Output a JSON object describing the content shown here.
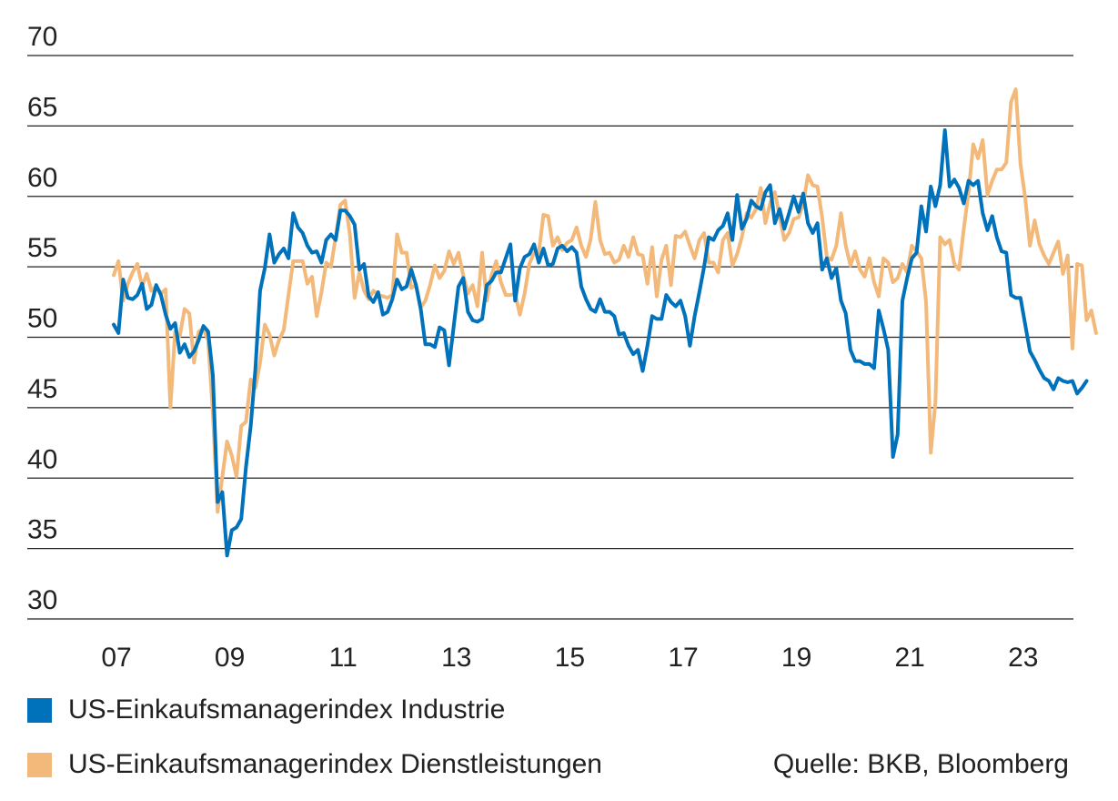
{
  "chart_data": {
    "type": "line",
    "title": "",
    "xlabel": "",
    "ylabel": "",
    "ylim": [
      30,
      70
    ],
    "yticks": [
      30,
      35,
      40,
      45,
      50,
      55,
      60,
      65,
      70
    ],
    "xticks": [
      {
        "label": "07",
        "year": 2007
      },
      {
        "label": "09",
        "year": 2009
      },
      {
        "label": "11",
        "year": 2011
      },
      {
        "label": "13",
        "year": 2013
      },
      {
        "label": "15",
        "year": 2015
      },
      {
        "label": "17",
        "year": 2017
      },
      {
        "label": "19",
        "year": 2019
      },
      {
        "label": "21",
        "year": 2021
      },
      {
        "label": "23",
        "year": 2023
      }
    ],
    "x_start": "2007-01",
    "x_frequency": "monthly",
    "grid": true,
    "legend_position": "bottom-left",
    "series": [
      {
        "name": "US-Einkaufsmanagerindex Industrie",
        "color": "#0072BC",
        "values": [
          50.9,
          50.3,
          54.1,
          52.8,
          52.7,
          53.0,
          53.8,
          52.0,
          52.3,
          53.7,
          53.0,
          51.6,
          50.6,
          51.0,
          48.9,
          49.5,
          48.6,
          49.0,
          49.8,
          50.8,
          50.4,
          47.3,
          38.3,
          39.0,
          34.5,
          36.3,
          36.5,
          37.1,
          40.8,
          43.7,
          47.8,
          53.3,
          54.9,
          57.3,
          55.3,
          55.9,
          56.3,
          55.6,
          58.8,
          57.8,
          57.4,
          56.5,
          56.0,
          56.1,
          55.3,
          56.9,
          57.3,
          56.9,
          59.0,
          59.0,
          58.6,
          58.0,
          54.8,
          55.2,
          52.9,
          52.5,
          53.2,
          51.6,
          51.8,
          52.7,
          54.1,
          53.4,
          53.6,
          54.8,
          53.7,
          52.0,
          49.5,
          49.5,
          49.3,
          50.7,
          50.5,
          48.0,
          50.8,
          53.6,
          54.2,
          51.8,
          51.2,
          51.1,
          51.3,
          53.7,
          54.0,
          54.6,
          54.6,
          55.6,
          56.6,
          52.6,
          54.9,
          55.7,
          55.9,
          56.6,
          55.3,
          56.3,
          55.1,
          55.2,
          56.3,
          56.5,
          56.1,
          56.4,
          56.0,
          53.6,
          52.7,
          52.0,
          51.8,
          52.7,
          51.8,
          51.8,
          51.5,
          50.2,
          50.3,
          49.4,
          48.8,
          49.1,
          47.6,
          49.4,
          51.5,
          51.3,
          51.3,
          53.0,
          52.5,
          52.2,
          52.6,
          51.5,
          49.4,
          51.5,
          53.2,
          55.0,
          57.1,
          56.9,
          57.6,
          57.9,
          58.8,
          56.9,
          60.1,
          57.7,
          58.4,
          59.7,
          59.3,
          59.1,
          60.3,
          60.8,
          58.1,
          59.1,
          57.7,
          58.8,
          60.0,
          58.9,
          60.2,
          58.1,
          57.4,
          58.1,
          54.8,
          55.6,
          54.2,
          54.9,
          52.6,
          51.7,
          49.1,
          48.3,
          48.3,
          48.1,
          48.1,
          47.8,
          51.9,
          50.6,
          49.1,
          41.5,
          43.1,
          52.6,
          54.2,
          55.6,
          56.0,
          59.3,
          57.5,
          60.7,
          59.3,
          60.8,
          64.7,
          60.7,
          61.2,
          60.6,
          59.5,
          61.1,
          60.8,
          61.1,
          58.8,
          57.6,
          58.6,
          57.1,
          56.1,
          56.0,
          53.0,
          52.8,
          52.8,
          50.9,
          49.0,
          48.4,
          47.7,
          47.1,
          46.9,
          46.3,
          47.1,
          46.9,
          46.8,
          46.9,
          46.0,
          46.4,
          46.9
        ]
      },
      {
        "name": "US-Einkaufsmanagerindex Dienstleistungen",
        "color": "#F3B97A",
        "values": [
          54.4,
          55.4,
          52.6,
          53.8,
          54.6,
          55.2,
          53.6,
          54.5,
          53.3,
          53.6,
          53.1,
          53.4,
          45.0,
          50.4,
          50.1,
          52.0,
          51.7,
          48.2,
          50.4,
          50.6,
          49.8,
          44.6,
          37.6,
          40.1,
          42.6,
          41.6,
          40.1,
          43.7,
          44.0,
          47.0,
          46.4,
          48.2,
          50.9,
          50.2,
          48.7,
          49.8,
          50.5,
          53.0,
          55.4,
          55.4,
          55.4,
          53.8,
          54.3,
          51.5,
          53.2,
          55.3,
          55.0,
          57.1,
          59.4,
          59.7,
          57.3,
          52.8,
          54.6,
          53.3,
          52.7,
          53.3,
          53.0,
          52.9,
          52.8,
          53.0,
          57.3,
          56.0,
          56.0,
          53.5,
          53.7,
          52.1,
          52.6,
          53.7,
          55.1,
          54.2,
          54.7,
          56.1,
          55.2,
          56.0,
          54.4,
          53.1,
          53.7,
          52.2,
          56.0,
          52.6,
          54.4,
          55.4,
          53.9,
          53.0,
          53.0,
          53.1,
          51.6,
          53.1,
          55.2,
          56.0,
          56.0,
          58.7,
          58.6,
          56.5,
          57.1,
          56.2,
          56.7,
          56.9,
          57.8,
          56.5,
          55.7,
          57.0,
          59.6,
          56.9,
          55.9,
          56.0,
          55.3,
          55.5,
          56.5,
          55.7,
          57.1,
          55.9,
          55.8,
          53.8,
          56.4,
          52.9,
          55.5,
          56.5,
          53.7,
          57.2,
          57.1,
          57.5,
          56.5,
          55.6,
          56.9,
          57.4,
          55.3,
          55.3,
          54.6,
          56.9,
          57.4,
          55.1,
          55.9,
          57.1,
          58.8,
          58.5,
          59.1,
          60.6,
          58.1,
          59.5,
          60.3,
          58.6,
          56.9,
          57.4,
          58.4,
          58.5,
          59.5,
          61.5,
          60.8,
          60.7,
          58.5,
          55.7,
          55.5,
          56.5,
          58.8,
          56.5,
          55.1,
          56.1,
          54.8,
          54.3,
          55.6,
          53.9,
          52.9,
          55.6,
          55.3,
          53.9,
          54.2,
          55.2,
          54.6,
          56.5,
          56.1,
          55.6,
          52.5,
          41.8,
          45.4,
          57.1,
          56.6,
          56.9,
          55.2,
          54.8,
          57.7,
          60.3,
          63.7,
          62.7,
          64.0,
          60.1,
          61.1,
          61.9,
          61.9,
          62.4,
          66.7,
          67.6,
          62.3,
          59.9,
          56.5,
          58.3,
          56.6,
          55.8,
          55.2,
          56.0,
          56.8,
          54.5,
          55.8,
          49.2,
          55.2,
          55.1,
          51.2,
          51.9,
          50.3
        ]
      }
    ]
  },
  "legend": [
    {
      "label": "US-Einkaufsmanagerindex Industrie",
      "color": "#0072BC"
    },
    {
      "label": "US-Einkaufsmanagerindex Dienstleistungen",
      "color": "#F3B97A"
    }
  ],
  "source": "Quelle: BKB, Bloomberg"
}
